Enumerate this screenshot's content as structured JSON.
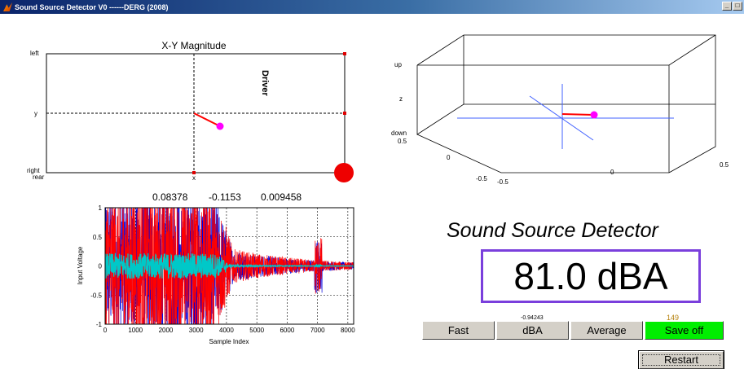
{
  "window": {
    "title": "Sound Source Detector V0 ------DERG (2008)",
    "minimize_glyph": "_",
    "maximize_glyph": "□",
    "icon": "matlab-icon"
  },
  "xy_plot": {
    "title": "X-Y Magnitude",
    "label_left": "left",
    "label_y": "y",
    "label_right": "right",
    "label_rear": "rear",
    "label_x": "x",
    "label_driver": "Driver",
    "vector": {
      "x": -0.08,
      "y": -0.12
    }
  },
  "plot3d": {
    "label_up": "up",
    "label_z": "z",
    "label_down": "down",
    "tick_y_pos": "0.5",
    "tick_y_zero": "0",
    "tick_y_neg": "-0.5",
    "tick_x_neg": "-0.5",
    "tick_x_zero": "0",
    "tick_x_pos": "0.5"
  },
  "readout_values": {
    "v1": "0.08378",
    "v2": "-0.1153",
    "v3": "0.009458"
  },
  "chart_data": {
    "type": "line",
    "xlabel": "Sample Index",
    "ylabel": "Input Voltage",
    "xlim": [
      0,
      8192
    ],
    "ylim": [
      -1,
      1
    ],
    "x_ticks": [
      0,
      1000,
      2000,
      3000,
      4000,
      5000,
      6000,
      7000,
      8000
    ],
    "y_ticks": [
      -1,
      -0.5,
      0,
      0.5,
      1
    ],
    "y_tick_labels": [
      "-1",
      "-0.5",
      "0",
      "0.5",
      "1"
    ],
    "grid": true,
    "series_colors": [
      "#0000dd",
      "#ff0000",
      "#00c8c8"
    ]
  },
  "detector": {
    "title": "Sound Source Detector",
    "level": "81.0 dBA",
    "small_value": "-0.94243",
    "count_value": "149"
  },
  "controls": {
    "fast_label": "Fast",
    "dba_label": "dBA",
    "average_label": "Average",
    "save_label": "Save off",
    "restart_label": "Restart"
  },
  "colors": {
    "accent_magenta": "#ff00ff",
    "marker_red": "#ee0000",
    "readout_border": "#7a3fdc",
    "save_green": "#00ee00"
  }
}
